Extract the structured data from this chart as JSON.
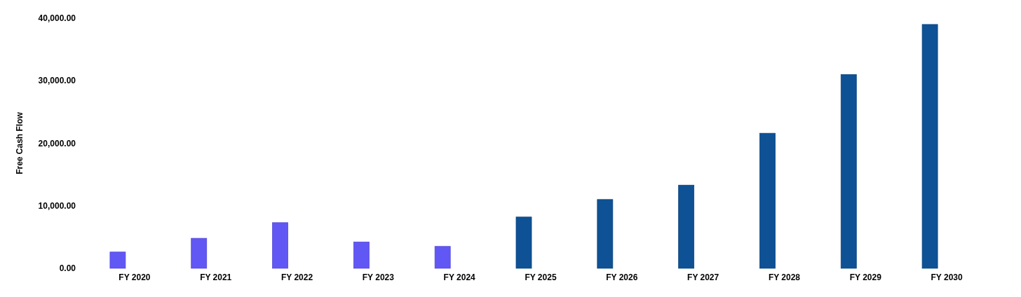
{
  "chart_data": {
    "type": "bar",
    "ylabel": "Free Cash Flow",
    "categories": [
      "FY 2020",
      "FY 2021",
      "FY 2022",
      "FY 2023",
      "FY 2024",
      "FY 2025",
      "FY 2026",
      "FY 2027",
      "FY 2028",
      "FY 2029",
      "FY 2030"
    ],
    "values": [
      2600,
      4800,
      7300,
      4200,
      3500,
      8200,
      11000,
      13300,
      21600,
      31000,
      39000
    ],
    "colors": [
      "#6157f5",
      "#6157f5",
      "#6157f5",
      "#6157f5",
      "#6157f5",
      "#0e5194",
      "#0e5194",
      "#0e5194",
      "#0e5194",
      "#0e5194",
      "#0e5194"
    ],
    "ylim": [
      0,
      40000
    ],
    "yticks": [
      {
        "value": 0,
        "label": "0.00"
      },
      {
        "value": 10000,
        "label": "10,000.00"
      },
      {
        "value": 20000,
        "label": "20,000.00"
      },
      {
        "value": 30000,
        "label": "30,000.00"
      },
      {
        "value": 40000,
        "label": "40,000.00"
      }
    ],
    "grid": false
  }
}
